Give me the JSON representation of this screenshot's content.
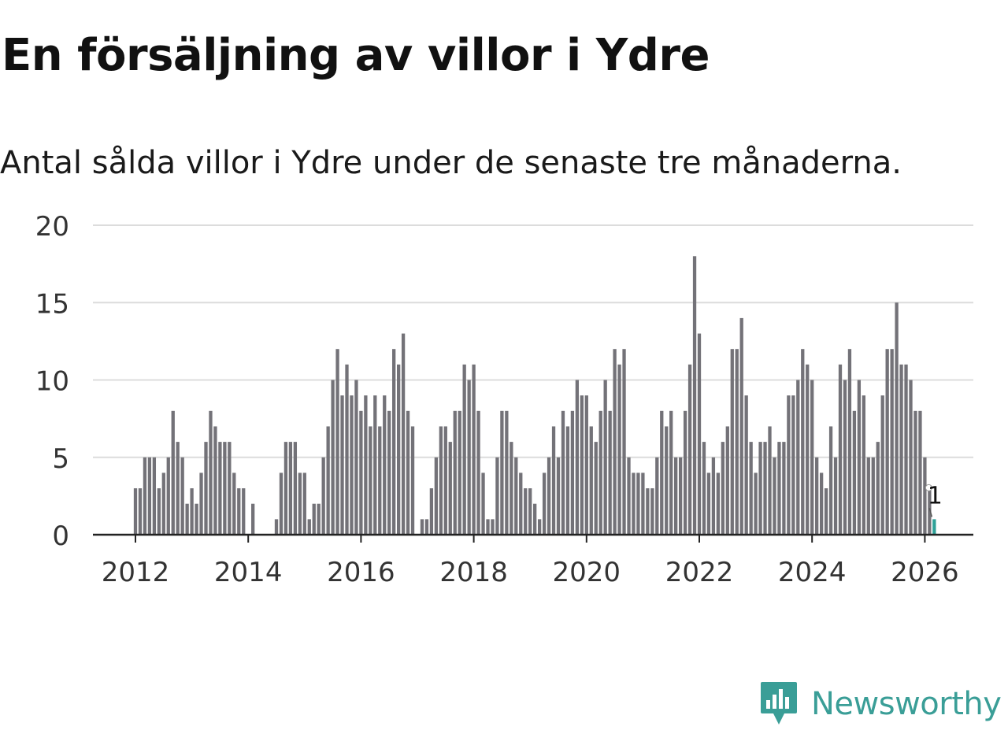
{
  "title": "En försäljning av villor i Ydre",
  "subtitle": "Antal sålda villor i Ydre under de senaste tre månaderna.",
  "brand": {
    "name": "Newsworthy",
    "logo_icon": "bar-chart-speech-bubble-icon"
  },
  "colors": {
    "bar": "#737278",
    "highlight": "#2fa198",
    "grid": "#dcdcdc",
    "axis": "#222222",
    "brand": "#3a9e97"
  },
  "chart_data": {
    "type": "bar",
    "xlabel": "",
    "ylabel": "",
    "ylim": [
      0,
      20
    ],
    "yticks": [
      0,
      5,
      10,
      15,
      20
    ],
    "xticks": [
      "2012",
      "2014",
      "2016",
      "2018",
      "2020",
      "2022",
      "2024",
      "2026"
    ],
    "x_start": "2012-01",
    "x_end": "2026-02",
    "grid": true,
    "values": [
      3,
      3,
      5,
      5,
      5,
      3,
      4,
      5,
      8,
      6,
      5,
      2,
      3,
      2,
      4,
      6,
      8,
      7,
      6,
      6,
      6,
      4,
      3,
      3,
      0,
      2,
      0,
      0,
      0,
      0,
      1,
      4,
      6,
      6,
      6,
      4,
      4,
      1,
      2,
      2,
      5,
      7,
      10,
      12,
      9,
      11,
      9,
      10,
      8,
      9,
      7,
      9,
      7,
      9,
      8,
      12,
      11,
      13,
      8,
      7,
      0,
      1,
      1,
      3,
      5,
      7,
      7,
      6,
      8,
      8,
      11,
      10,
      11,
      8,
      4,
      1,
      1,
      5,
      8,
      8,
      6,
      5,
      4,
      3,
      3,
      2,
      1,
      4,
      5,
      7,
      5,
      8,
      7,
      8,
      10,
      9,
      9,
      7,
      6,
      8,
      10,
      8,
      12,
      11,
      12,
      5,
      4,
      4,
      4,
      3,
      3,
      5,
      8,
      7,
      8,
      5,
      5,
      8,
      11,
      18,
      13,
      6,
      4,
      5,
      4,
      6,
      7,
      12,
      12,
      14,
      9,
      6,
      4,
      6,
      6,
      7,
      5,
      6,
      6,
      9,
      9,
      10,
      12,
      11,
      10,
      5,
      4,
      3,
      7,
      5,
      11,
      10,
      12,
      8,
      10,
      9,
      5,
      5,
      6,
      9,
      12,
      12,
      15,
      11,
      11,
      10,
      8,
      8,
      5,
      3,
      1
    ],
    "highlight_last": true,
    "annotation": {
      "label": "1",
      "target": "last"
    }
  }
}
